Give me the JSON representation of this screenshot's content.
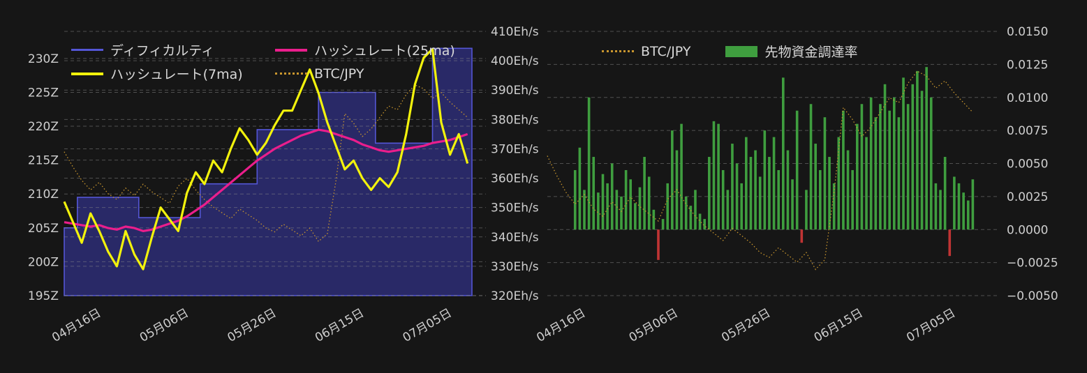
{
  "app": {
    "background": "#161616",
    "text_color": "#d4d4d4",
    "grid_color": "#8a8a8a"
  },
  "chart_data": [
    {
      "id": "difficulty-hashrate-chart",
      "type": "line",
      "legend_items": [
        {
          "label": "ディフィカルティ",
          "color": "#5456d6",
          "style": "line"
        },
        {
          "label": "ハッシュレート(25ma)",
          "color": "#ea1e8c",
          "style": "line-thick"
        },
        {
          "label": "ハッシュレート(7ma)",
          "color": "#f2f20c",
          "style": "line-thick"
        },
        {
          "label": "BTC/JPY",
          "color": "#c9962e",
          "style": "line-dotted"
        }
      ],
      "x_tick_labels": [
        "04月16日",
        "05月06日",
        "05月26日",
        "06月15日",
        "07月05日"
      ],
      "x_tick_days": [
        6,
        26,
        46,
        66,
        86
      ],
      "x_note": "x = day index, 0 ≈ chart left edge (about 04月10日), 93 = right edge (about 07月12日)",
      "left_axis": {
        "tick_labels": [
          "230Z",
          "225Z",
          "220Z",
          "215Z",
          "210Z",
          "205Z",
          "200Z",
          "195Z"
        ],
        "tick_values": [
          230,
          225,
          220,
          215,
          210,
          205,
          200,
          195
        ],
        "range": [
          195,
          234
        ],
        "unit": "Z (difficulty)"
      },
      "right_axis": {
        "tick_labels": [
          "410Eh/s",
          "400Eh/s",
          "390Eh/s",
          "380Eh/s",
          "370Eh/s",
          "360Eh/s",
          "350Eh/s",
          "340Eh/s",
          "330Eh/s",
          "320Eh/s"
        ],
        "tick_values": [
          410,
          400,
          390,
          380,
          370,
          360,
          350,
          340,
          330,
          320
        ],
        "range": [
          320,
          410
        ],
        "unit": "Eh/s (hashrate)"
      },
      "series": [
        {
          "name": "ディフィカルティ",
          "axis": "left",
          "render": "step-area",
          "color": "#5456d6",
          "fill": "rgba(43,43,112,0.9)",
          "unit": "Z",
          "points_day_value": [
            [
              0,
              205
            ],
            [
              3,
              209.5
            ],
            [
              17,
              206.5
            ],
            [
              31,
              211.5
            ],
            [
              44,
              219.5
            ],
            [
              58,
              225
            ],
            [
              71,
              217.5
            ],
            [
              84,
              231.5
            ],
            [
              93,
              231.5
            ]
          ]
        },
        {
          "name": "BTC/JPY",
          "axis": "overlay-hidden",
          "render": "dotted-line",
          "color": "#c9962e",
          "x_step_days": 2,
          "note": "no visible price axis; values normalized 0-1 of its own hidden scale",
          "values_normalized": [
            0.6,
            0.52,
            0.45,
            0.4,
            0.44,
            0.38,
            0.35,
            0.41,
            0.37,
            0.43,
            0.39,
            0.36,
            0.33,
            0.42,
            0.46,
            0.4,
            0.35,
            0.31,
            0.28,
            0.25,
            0.3,
            0.27,
            0.24,
            0.2,
            0.18,
            0.22,
            0.19,
            0.16,
            0.2,
            0.13,
            0.17,
            0.45,
            0.8,
            0.75,
            0.68,
            0.72,
            0.78,
            0.84,
            0.82,
            0.9,
            0.95,
            0.93,
            0.88,
            0.91,
            0.86,
            0.82,
            0.78
          ]
        },
        {
          "name": "ハッシュレート(25ma)",
          "axis": "right",
          "render": "line",
          "color": "#ea1e8c",
          "x_step_days": 2,
          "unit": "Eh/s",
          "values": [
            345,
            344.5,
            344,
            343.5,
            344,
            343,
            342.5,
            343.5,
            343,
            342,
            342.5,
            343.5,
            344.5,
            345.5,
            347,
            349,
            351,
            353.5,
            356,
            358.5,
            361,
            363.5,
            366,
            368,
            370,
            371.5,
            373,
            374.5,
            375.5,
            376.5,
            376,
            375,
            374,
            373,
            371.5,
            370.5,
            369.5,
            369,
            369.5,
            370,
            370.5,
            371,
            372,
            372.5,
            373,
            374,
            375
          ]
        },
        {
          "name": "ハッシュレート(7ma)",
          "axis": "right",
          "render": "line",
          "color": "#f2f20c",
          "x_step_days": 2,
          "unit": "Eh/s",
          "values": [
            352,
            345,
            338,
            348,
            342,
            335,
            330,
            342,
            334,
            329,
            340,
            350,
            346,
            342,
            355,
            362,
            358,
            366,
            362,
            370,
            377,
            373,
            368,
            372,
            378,
            383,
            383,
            390,
            397,
            389,
            379,
            371,
            363,
            366,
            360,
            356,
            360,
            357,
            362,
            375,
            392,
            401,
            404,
            379,
            368,
            375,
            365
          ]
        }
      ]
    },
    {
      "id": "funding-rate-chart",
      "type": "bar",
      "legend_items": [
        {
          "label": "BTC/JPY",
          "color": "#c9962e",
          "style": "line-dotted"
        },
        {
          "label": "先物資金調達率",
          "color": "#3f9e3f",
          "style": "rect"
        }
      ],
      "x_tick_labels": [
        "04月16日",
        "05月06日",
        "05月26日",
        "06月15日",
        "07月05日"
      ],
      "x_tick_days": [
        6,
        26,
        46,
        66,
        86
      ],
      "right_axis": {
        "tick_labels": [
          "0.0150",
          "0.0125",
          "0.0100",
          "0.0075",
          "0.0050",
          "0.0025",
          "0.0000",
          "−0.0025",
          "−0.0050"
        ],
        "tick_values": [
          0.015,
          0.0125,
          0.01,
          0.0075,
          0.005,
          0.0025,
          0.0,
          -0.0025,
          -0.005
        ],
        "range": [
          -0.005,
          0.015
        ],
        "unit": "funding rate"
      },
      "series": [
        {
          "name": "先物資金調達率",
          "render": "bars",
          "positive_color": "#3f9e3f",
          "negative_color": "#c03434",
          "start_day": 6,
          "values": [
            0.0045,
            0.0062,
            0.003,
            0.01,
            0.0055,
            0.0028,
            0.0042,
            0.0035,
            0.005,
            0.003,
            0.0025,
            0.0045,
            0.0038,
            0.002,
            0.0032,
            0.0055,
            0.004,
            0.0015,
            -0.0023,
            0.0008,
            0.0035,
            0.0075,
            0.006,
            0.008,
            0.0025,
            0.0018,
            0.003,
            0.0012,
            0.0008,
            0.0055,
            0.0082,
            0.008,
            0.0045,
            0.003,
            0.0065,
            0.005,
            0.0035,
            0.007,
            0.0055,
            0.006,
            0.004,
            0.0075,
            0.0055,
            0.007,
            0.0045,
            0.0115,
            0.006,
            0.0038,
            0.009,
            -0.001,
            0.003,
            0.0095,
            0.0065,
            0.0045,
            0.0085,
            0.0055,
            0.0035,
            0.007,
            0.009,
            0.006,
            0.0045,
            0.008,
            0.0095,
            0.007,
            0.01,
            0.0085,
            0.0095,
            0.011,
            0.009,
            0.01,
            0.0085,
            0.0115,
            0.0095,
            0.011,
            0.012,
            0.0105,
            0.0123,
            0.01,
            0.0035,
            0.003,
            0.0055,
            -0.002,
            0.004,
            0.0035,
            0.0028,
            0.0022,
            0.0038
          ]
        },
        {
          "name": "BTC/JPY",
          "render": "dotted-line",
          "color": "#c9962e",
          "x_step_days": 2,
          "note": "same normalized BTC/JPY price overlay as left chart, no visible price axis",
          "values_normalized": [
            0.6,
            0.52,
            0.45,
            0.4,
            0.44,
            0.38,
            0.35,
            0.41,
            0.37,
            0.43,
            0.39,
            0.36,
            0.33,
            0.42,
            0.46,
            0.4,
            0.35,
            0.31,
            0.28,
            0.25,
            0.3,
            0.27,
            0.24,
            0.2,
            0.18,
            0.22,
            0.19,
            0.16,
            0.2,
            0.13,
            0.17,
            0.45,
            0.8,
            0.75,
            0.68,
            0.72,
            0.78,
            0.84,
            0.82,
            0.9,
            0.95,
            0.93,
            0.88,
            0.91,
            0.86,
            0.82,
            0.78
          ]
        }
      ]
    }
  ]
}
